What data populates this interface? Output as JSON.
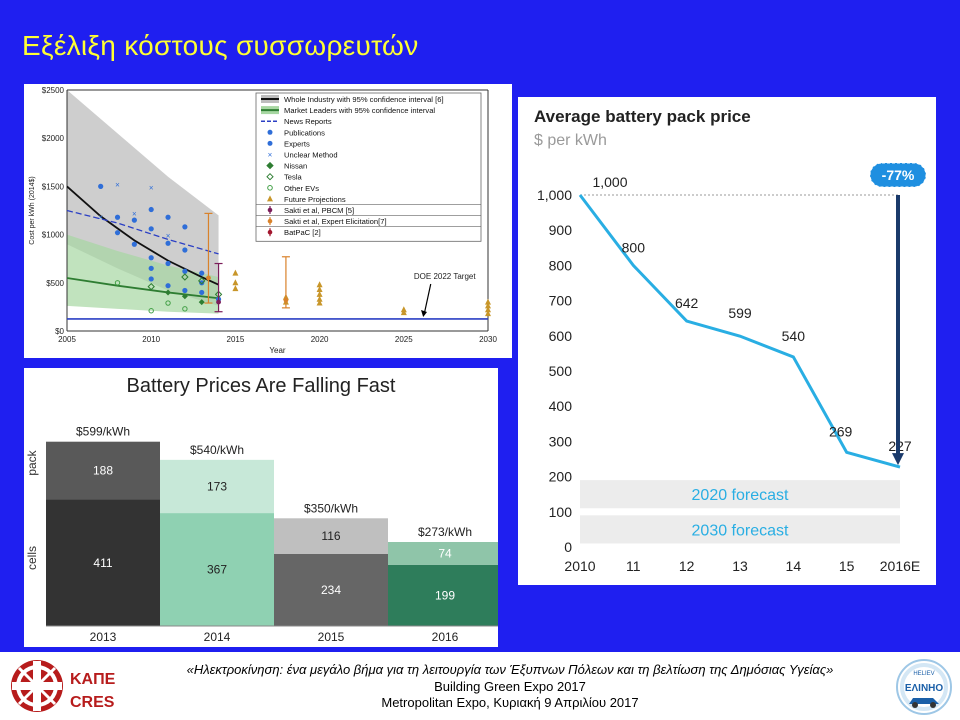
{
  "slide": {
    "title": "Εξέλιξη κόστους συσσωρευτών",
    "background": "#1f1ff0",
    "title_color": "#ffff33"
  },
  "footer": {
    "line1": "«Ηλεκτροκίνηση: ένα μεγάλο βήμα για τη λειτουργία των Έξυπνων Πόλεων και τη βελτίωση της Δημόσιας Υγείας»",
    "line2": "Building Green Expo 2017",
    "line3": "Metropolitan Expo, Κυριακή 9 Απριλίου 2017",
    "left_logo": {
      "line1": "ΚΑΠΕ",
      "line2": "CRES"
    },
    "right_logo": {
      "line1": "HELIEV",
      "line2": "ΕΛΙΝΗΟ"
    }
  },
  "chart_data": [
    {
      "id": "cost-estimates",
      "type": "scatter",
      "title": "",
      "xlabel": "Year",
      "ylabel": "Cost per kWh (2014$)",
      "xlim": [
        2005,
        2030
      ],
      "ylim": [
        0,
        2500
      ],
      "x_ticks": [
        "2005",
        "2010",
        "2015",
        "2020",
        "2025",
        "2030"
      ],
      "y_ticks": [
        "$0",
        "$500",
        "$1000",
        "$1500",
        "$2000",
        "$2500"
      ],
      "annotation": "DOE 2022 Target",
      "doe_target": 125,
      "legend_position": "top-right",
      "legend": [
        "Whole Industry with 95% confidence interval [6]",
        "Market Leaders with 95% confidence interval",
        "News Reports",
        "Publications",
        "Experts",
        "Unclear Method",
        "Nissan",
        "Tesla",
        "Other EVs",
        "Future Projections",
        "Sakti et al, PBCM [5]",
        "Sakti et al, Expert Elicitation[7]",
        "BatPaC [2]"
      ],
      "whole_industry_fit": [
        [
          2005,
          1500
        ],
        [
          2007,
          1190
        ],
        [
          2009,
          940
        ],
        [
          2011,
          730
        ],
        [
          2013,
          560
        ],
        [
          2014,
          480
        ]
      ],
      "whole_industry_band": {
        "upper": [
          [
            2005,
            2500
          ],
          [
            2008,
            2050
          ],
          [
            2011,
            1600
          ],
          [
            2014,
            1200
          ]
        ],
        "lower": [
          [
            2005,
            900
          ],
          [
            2008,
            650
          ],
          [
            2011,
            420
          ],
          [
            2014,
            260
          ]
        ]
      },
      "market_leaders_fit": [
        [
          2005,
          550
        ],
        [
          2008,
          470
        ],
        [
          2011,
          400
        ],
        [
          2014,
          340
        ]
      ],
      "market_leaders_band": {
        "upper": [
          [
            2005,
            1000
          ],
          [
            2008,
            830
          ],
          [
            2011,
            680
          ],
          [
            2014,
            560
          ]
        ],
        "lower": [
          [
            2005,
            260
          ],
          [
            2008,
            230
          ],
          [
            2011,
            200
          ],
          [
            2014,
            180
          ]
        ]
      },
      "news_reports_line": [
        [
          2005,
          1250
        ],
        [
          2008,
          1120
        ],
        [
          2011,
          950
        ],
        [
          2014,
          800
        ]
      ],
      "publications": [
        [
          2007,
          1500
        ],
        [
          2008,
          1180
        ],
        [
          2008,
          1020
        ],
        [
          2009,
          1150
        ],
        [
          2009,
          900
        ],
        [
          2010,
          1260
        ],
        [
          2010,
          1060
        ],
        [
          2010,
          760
        ],
        [
          2010,
          650
        ],
        [
          2011,
          1180
        ],
        [
          2011,
          910
        ],
        [
          2011,
          700
        ],
        [
          2012,
          1080
        ],
        [
          2012,
          840
        ],
        [
          2012,
          620
        ],
        [
          2013,
          600
        ],
        [
          2013,
          500
        ]
      ],
      "experts": [
        [
          2010,
          540
        ],
        [
          2011,
          470
        ],
        [
          2012,
          420
        ],
        [
          2013,
          400
        ],
        [
          2014,
          330
        ]
      ],
      "unclear_method": [
        [
          2007,
          1180
        ],
        [
          2008,
          1520
        ],
        [
          2009,
          1220
        ],
        [
          2010,
          1490
        ],
        [
          2011,
          990
        ]
      ],
      "nissan": [
        [
          2011,
          400
        ],
        [
          2012,
          360
        ],
        [
          2013,
          300
        ]
      ],
      "tesla": [
        [
          2010,
          460
        ],
        [
          2012,
          560
        ],
        [
          2013,
          520
        ],
        [
          2014,
          380
        ]
      ],
      "other_evs": [
        [
          2008,
          500
        ],
        [
          2010,
          210
        ],
        [
          2011,
          290
        ],
        [
          2012,
          230
        ]
      ],
      "future_projections": [
        [
          2015,
          600
        ],
        [
          2015,
          500
        ],
        [
          2015,
          440
        ],
        [
          2018,
          350
        ],
        [
          2018,
          300
        ],
        [
          2020,
          480
        ],
        [
          2020,
          430
        ],
        [
          2020,
          380
        ],
        [
          2020,
          330
        ],
        [
          2020,
          290
        ],
        [
          2025,
          220
        ],
        [
          2025,
          190
        ],
        [
          2030,
          300
        ],
        [
          2030,
          260
        ],
        [
          2030,
          220
        ],
        [
          2030,
          180
        ]
      ],
      "range_bars": [
        {
          "x": 2013.4,
          "low": 290,
          "high": 1220,
          "mid": 550,
          "color": "#d9822b"
        },
        {
          "x": 2014.0,
          "low": 200,
          "high": 700,
          "mid": 300,
          "color": "#7b1d5a"
        },
        {
          "x": 2018.0,
          "low": 240,
          "high": 770,
          "mid": 320,
          "color": "#d9822b"
        }
      ]
    },
    {
      "id": "battery-prices",
      "type": "bar",
      "title": "Battery Prices Are Falling Fast",
      "categories": [
        "2013",
        "2014",
        "2015",
        "2016"
      ],
      "totals": [
        "$599/kWh",
        "$540/kWh",
        "$350/kWh",
        "$273/kWh"
      ],
      "ylim": [
        0,
        650
      ],
      "y_labels": [
        "cells",
        "pack"
      ],
      "series": [
        {
          "name": "cells",
          "values": [
            411,
            367,
            234,
            199
          ],
          "colors": [
            "#333333",
            "#8fd1b2",
            "#666666",
            "#2e7d5b"
          ]
        },
        {
          "name": "pack",
          "values": [
            188,
            173,
            116,
            74
          ],
          "colors": [
            "#595959",
            "#c7e8d8",
            "#bfbfbf",
            "#8fc5a9"
          ]
        }
      ]
    },
    {
      "id": "average-pack-price",
      "type": "line",
      "title": "Average battery pack price",
      "subtitle": "$ per kWh",
      "categories": [
        "2010",
        "11",
        "12",
        "13",
        "14",
        "15",
        "2016E"
      ],
      "values": [
        1000,
        800,
        642,
        599,
        540,
        269,
        227
      ],
      "data_labels": [
        "1,000",
        "800",
        "642",
        "599",
        "540",
        "269",
        "227"
      ],
      "ylim": [
        0,
        1000
      ],
      "y_ticks": [
        "0",
        "100",
        "200",
        "300",
        "400",
        "500",
        "600",
        "700",
        "800",
        "900",
        "1,000"
      ],
      "change_badge": "-77%",
      "forecasts": [
        "2020 forecast",
        "2030 forecast"
      ],
      "forecast_bands": [
        [
          110,
          190
        ],
        [
          10,
          90
        ]
      ],
      "line_color": "#29aee3",
      "arrow_color": "#1a3a6b"
    }
  ]
}
